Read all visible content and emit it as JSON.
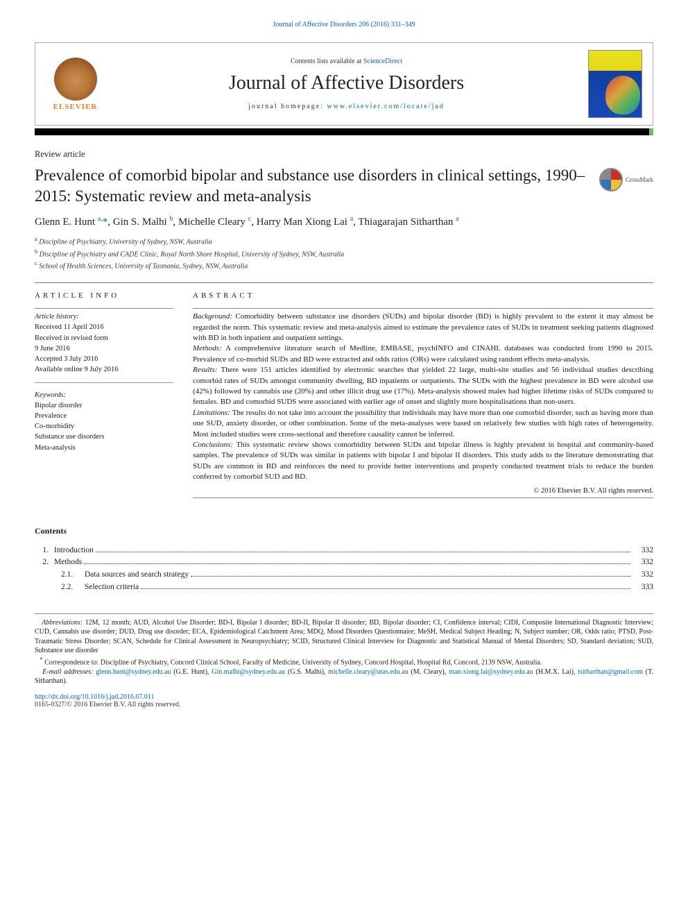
{
  "running_head": {
    "text": "Journal of Affective Disorders 206 (2016) 331–349",
    "color": "#0066b3"
  },
  "banner": {
    "publisher": "ELSEVIER",
    "contents_prefix": "Contents lists available at ",
    "contents_link": "ScienceDirect",
    "journal_name": "Journal of Affective Disorders",
    "homepage_prefix": "journal homepage: ",
    "homepage_url": "www.elsevier.com/locate/jad",
    "cover_colors": {
      "top": "#e6e020",
      "bottom": "#1848b8"
    }
  },
  "article_type": "Review article",
  "title": "Prevalence of comorbid bipolar and substance use disorders in clinical settings, 1990–2015: Systematic review and meta-analysis",
  "crossmark_label": "CrossMark",
  "authors_html": "Glenn E. Hunt <sup>a,</sup><a>*</a>, Gin S. Malhi <sup>b</sup>, Michelle Cleary <sup>c</sup>, Harry Man Xiong Lai <sup>a</sup>, Thiagarajan Sitharthan <sup>a</sup>",
  "affiliations": [
    {
      "sup": "a",
      "text": "Discipline of Psychiatry, University of Sydney, NSW, Australia"
    },
    {
      "sup": "b",
      "text": "Discipline of Psychiatry and CADE Clinic, Royal North Shore Hospital, University of Sydney, NSW, Australia"
    },
    {
      "sup": "c",
      "text": "School of Health Sciences, University of Tasmania, Sydney, NSW, Australia"
    }
  ],
  "article_info": {
    "heading": "ARTICLE INFO",
    "history_label": "Article history:",
    "history": [
      "Received 11 April 2016",
      "Received in revised form",
      "9 June 2016",
      "Accepted 3 July 2016",
      "Available online 9 July 2016"
    ],
    "keywords_label": "Keywords:",
    "keywords": [
      "Bipolar disorder",
      "Prevalence",
      "Co-morbidity",
      "Substance use disorders",
      "Meta-analysis"
    ]
  },
  "abstract": {
    "heading": "ABSTRACT",
    "sections": [
      {
        "label": "Background:",
        "text": "Comorbidity between substance use disorders (SUDs) and bipolar disorder (BD) is highly prevalent to the extent it may almost be regarded the norm. This systematic review and meta-analysis aimed to estimate the prevalence rates of SUDs in treatment seeking patients diagnosed with BD in both inpatient and outpatient settings."
      },
      {
        "label": "Methods:",
        "text": "A comprehensive literature search of Medline, EMBASE, psychINFO and CINAHL databases was conducted from 1990 to 2015. Prevalence of co-morbid SUDs and BD were extracted and odds ratios (ORs) were calculated using random effects meta-analysis."
      },
      {
        "label": "Results:",
        "text": "There were 151 articles identified by electronic searches that yielded 22 large, multi-site studies and 56 individual studies describing comorbid rates of SUDs amongst community dwelling, BD inpatients or outpatients. The SUDs with the highest prevalence in BD were alcohol use (42%) followed by cannabis use (20%) and other illicit drug use (17%). Meta-analysis showed males had higher lifetime risks of SUDs compared to females. BD and comorbid SUDS were associated with earlier age of onset and slightly more hospitalisations than non-users."
      },
      {
        "label": "Limitations:",
        "text": "The results do not take into account the possibility that individuals may have more than one comorbid disorder, such as having more than one SUD, anxiety disorder, or other combination. Some of the meta-analyses were based on relatively few studies with high rates of heterogeneity. Most included studies were cross-sectional and therefore causality cannot be inferred."
      },
      {
        "label": "Conclusions:",
        "text": "This systematic review shows comorbidity between SUDs and bipolar illness is highly prevalent in hospital and community-based samples. The prevalence of SUDs was similar in patients with bipolar I and bipolar II disorders. This study adds to the literature demonstrating that SUDs are common in BD and reinforces the need to provide better interventions and properly conducted treatment trials to reduce the burden conferred by comorbid SUD and BD."
      }
    ],
    "copyright": "© 2016 Elsevier B.V. All rights reserved."
  },
  "contents": {
    "title": "Contents",
    "rows": [
      {
        "num": "1.",
        "label": "Introduction",
        "sub": "",
        "page": "332",
        "indent": 0
      },
      {
        "num": "2.",
        "label": "Methods",
        "sub": "",
        "page": "332",
        "indent": 0
      },
      {
        "num": "",
        "label": "Data sources and search strategy",
        "sub": "2.1.",
        "page": "332",
        "indent": 1
      },
      {
        "num": "",
        "label": "Selection criteria",
        "sub": "2.2.",
        "page": "333",
        "indent": 1
      }
    ]
  },
  "footnotes": {
    "abbrev_label": "Abbreviations:",
    "abbrev_text": "12M, 12 month; AUD, Alcohol Use Disorder; BD-I, Bipolar I disorder; BD-II, Bipolar II disorder; BD, Bipolar disorder; CI, Confidence interval; CIDI, Composite International Diagnostic Interview; CUD, Cannabis use disorder; DUD, Drug use disorder; ECA, Epidemiological Catchment Area; MDQ, Mood Disorders Questionnaire; MeSH, Medical Subject Heading; N, Subject number; OR, Odds ratio; PTSD, Post-Traumatic Stress Disorder; SCAN, Schedule for Clinical Assessment in Neuropsychiatry; SCID, Structured Clinical Interview for Diagnostic and Statistical Manual of Mental Disorders; SD, Standard deviation; SUD, Substance use disorder",
    "corr_marker": "*",
    "corr_text": "Correspondence to: Discipline of Psychiatry, Concord Clinical School, Faculty of Medicine, University of Sydney, Concord Hospital, Hospital Rd, Concord, 2139 NSW, Australia.",
    "email_label": "E-mail addresses:",
    "emails": [
      {
        "addr": "glenn.hunt@sydney.edu.au",
        "who": "(G.E. Hunt)"
      },
      {
        "addr": "Gin.malhi@sydney.edu.au",
        "who": "(G.S. Malhi)"
      },
      {
        "addr": "michelle.cleary@utas.edu.au",
        "who": "(M. Cleary)"
      },
      {
        "addr": "man-xiong.lai@sydney.edu.au",
        "who": "(H.M.X. Lai)"
      },
      {
        "addr": "tsitharthan@gmail.com",
        "who": "(T. Sitharthan)."
      }
    ]
  },
  "doi": "http://dx.doi.org/10.1016/j.jad.2016.07.011",
  "issn_line": "0165-0327/© 2016 Elsevier B.V. All rights reserved."
}
